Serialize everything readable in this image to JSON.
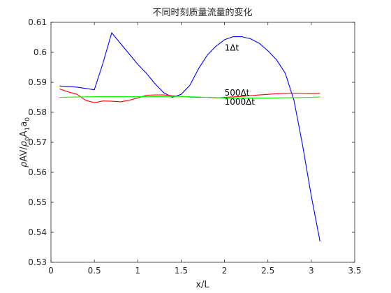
{
  "chart_data": {
    "type": "line",
    "title": "不同时刻质量流量的变化",
    "xlabel": "x/L",
    "ylabel": "ρAV/ρ0A1a0",
    "xlim": [
      0,
      3.5
    ],
    "ylim": [
      0.53,
      0.61
    ],
    "xticks": [
      "0",
      "0.5",
      "1",
      "1.5",
      "2",
      "2.5",
      "3",
      "3.5"
    ],
    "yticks": [
      "0.53",
      "0.54",
      "0.55",
      "0.56",
      "0.57",
      "0.58",
      "0.59",
      "0.6",
      "0.61"
    ],
    "grid": false,
    "series": [
      {
        "name": "1Δt",
        "color": "#0000ff",
        "x": [
          0.1,
          0.3,
          0.5,
          0.6,
          0.7,
          0.8,
          0.9,
          1.0,
          1.1,
          1.2,
          1.3,
          1.4,
          1.5,
          1.6,
          1.7,
          1.8,
          1.9,
          2.0,
          2.1,
          2.2,
          2.3,
          2.4,
          2.5,
          2.6,
          2.7,
          2.8,
          2.9,
          3.0,
          3.1
        ],
        "y": [
          0.5888,
          0.5884,
          0.5875,
          0.5965,
          0.6065,
          0.603,
          0.5995,
          0.596,
          0.593,
          0.5895,
          0.5865,
          0.585,
          0.586,
          0.589,
          0.5945,
          0.599,
          0.602,
          0.6042,
          0.6052,
          0.6052,
          0.6045,
          0.603,
          0.6005,
          0.5975,
          0.593,
          0.584,
          0.569,
          0.552,
          0.537
        ]
      },
      {
        "name": "500Δt",
        "color": "#ff0000",
        "x": [
          0.1,
          0.2,
          0.3,
          0.4,
          0.5,
          0.6,
          0.7,
          0.8,
          0.9,
          1.0,
          1.1,
          1.2,
          1.3,
          1.4,
          1.5,
          1.6,
          1.7,
          1.8,
          1.9,
          2.0,
          2.2,
          2.4,
          2.6,
          2.8,
          3.0,
          3.1
        ],
        "y": [
          0.5878,
          0.5868,
          0.586,
          0.584,
          0.5832,
          0.5838,
          0.5837,
          0.5835,
          0.584,
          0.5848,
          0.5857,
          0.5858,
          0.5858,
          0.5855,
          0.5853,
          0.5851,
          0.585,
          0.585,
          0.5848,
          0.585,
          0.5853,
          0.5858,
          0.5862,
          0.5864,
          0.5863,
          0.5863
        ]
      },
      {
        "name": "1000Δt",
        "color": "#00ff00",
        "x": [
          0.1,
          0.5,
          1.0,
          1.5,
          2.0,
          2.5,
          3.0,
          3.1
        ],
        "y": [
          0.585,
          0.5852,
          0.5852,
          0.5853,
          0.5848,
          0.5848,
          0.585,
          0.5851
        ]
      }
    ],
    "annotations": [
      {
        "text": "1Δt",
        "x": 2.0,
        "y": 0.6015
      },
      {
        "text": "500Δt",
        "x": 2.0,
        "y": 0.5865
      },
      {
        "text": "1000Δt",
        "x": 2.0,
        "y": 0.5835
      }
    ]
  }
}
